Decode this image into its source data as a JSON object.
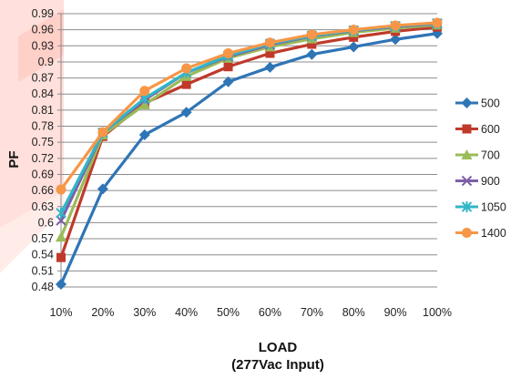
{
  "chart_data": {
    "type": "line",
    "title": "",
    "xlabel": "LOAD",
    "xlabel_sub": "(277Vac Input)",
    "ylabel": "PF",
    "categories": [
      "10%",
      "20%",
      "30%",
      "40%",
      "50%",
      "60%",
      "70%",
      "80%",
      "90%",
      "100%"
    ],
    "y_ticks": [
      "0.48",
      "0.51",
      "0.54",
      "0.57",
      "0.6",
      "0.63",
      "0.66",
      "0.69",
      "0.72",
      "0.75",
      "0.78",
      "0.81",
      "0.84",
      "0.87",
      "0.9",
      "0.93",
      "0.96",
      "0.99"
    ],
    "ylim": [
      0.48,
      0.99
    ],
    "grid": true,
    "legend_position": "right",
    "series": [
      {
        "name": "500",
        "color": "#2e75b6",
        "marker": "diamond",
        "values": [
          0.485,
          0.663,
          0.764,
          0.806,
          0.863,
          0.89,
          0.914,
          0.928,
          0.942,
          0.953
        ]
      },
      {
        "name": "600",
        "color": "#c0392b",
        "marker": "square",
        "values": [
          0.535,
          0.761,
          0.823,
          0.858,
          0.891,
          0.916,
          0.933,
          0.946,
          0.957,
          0.965
        ]
      },
      {
        "name": "700",
        "color": "#9bbb59",
        "marker": "triangle",
        "values": [
          0.573,
          0.764,
          0.82,
          0.873,
          0.907,
          0.928,
          0.943,
          0.955,
          0.963,
          0.969
        ]
      },
      {
        "name": "900",
        "color": "#7d5fa6",
        "marker": "x",
        "values": [
          0.604,
          0.768,
          0.829,
          0.88,
          0.91,
          0.932,
          0.948,
          0.958,
          0.966,
          0.971
        ]
      },
      {
        "name": "1050",
        "color": "#31b6c8",
        "marker": "star",
        "values": [
          0.618,
          0.768,
          0.832,
          0.88,
          0.912,
          0.934,
          0.949,
          0.959,
          0.967,
          0.972
        ]
      },
      {
        "name": "1400",
        "color": "#f79646",
        "marker": "circle",
        "values": [
          0.662,
          0.769,
          0.846,
          0.888,
          0.916,
          0.936,
          0.951,
          0.96,
          0.968,
          0.973
        ]
      }
    ]
  }
}
